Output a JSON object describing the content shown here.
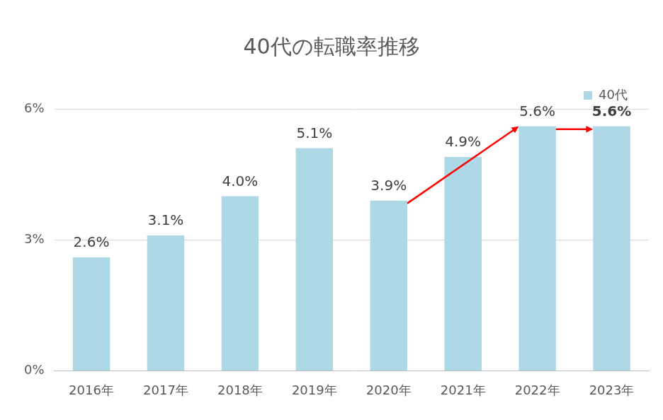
{
  "chart_data": {
    "type": "bar",
    "title": "40代の転職率推移",
    "categories": [
      "2016年",
      "2017年",
      "2018年",
      "2019年",
      "2020年",
      "2021年",
      "2022年",
      "2023年"
    ],
    "series": [
      {
        "name": "40代",
        "color": "#add8e6",
        "values": [
          2.6,
          3.1,
          4.0,
          5.1,
          3.9,
          4.9,
          5.6,
          5.6
        ],
        "value_labels": [
          "2.6%",
          "3.1%",
          "4.0%",
          "5.1%",
          "3.9%",
          "4.9%",
          "5.6%",
          "5.6%"
        ]
      }
    ],
    "ylim": [
      0,
      6
    ],
    "yticks": [
      {
        "value": 0,
        "label": "0%"
      },
      {
        "value": 3,
        "label": "3%"
      },
      {
        "value": 6,
        "label": "6%"
      }
    ],
    "grid": true,
    "legend": "top-right",
    "data_labels": true
  }
}
